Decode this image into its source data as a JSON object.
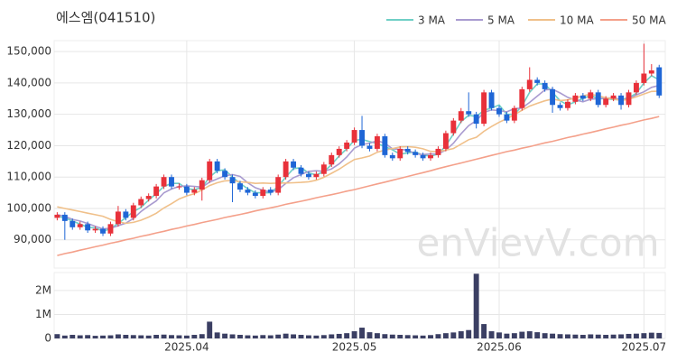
{
  "chart_data": {
    "type": "candlestick",
    "title": "에스엠(041510)",
    "watermark": "enVievV.com",
    "up_color": "#e8313a",
    "down_color": "#1f66d6",
    "volume_color": "#3b3f63",
    "grid": true,
    "xlim": [
      -0.4,
      79.8
    ],
    "xticks": [
      {
        "value": 17,
        "label": "2025.04"
      },
      {
        "value": 39,
        "label": "2025.05"
      },
      {
        "value": 58,
        "label": "2025.06"
      },
      {
        "value": 77,
        "label": "2025.07"
      }
    ],
    "ylim": [
      81000,
      153500
    ],
    "yticks": [
      {
        "value": 90000,
        "label": "90,000"
      },
      {
        "value": 100000,
        "label": "100,000"
      },
      {
        "value": 110000,
        "label": "110,000"
      },
      {
        "value": 120000,
        "label": "120,000"
      },
      {
        "value": 130000,
        "label": "130,000"
      },
      {
        "value": 140000,
        "label": "140,000"
      },
      {
        "value": 150000,
        "label": "150,000"
      }
    ],
    "volume_ylim": [
      0,
      2750000
    ],
    "volume_yticks": [
      0,
      {
        "value": 1000000,
        "label": "1M"
      },
      {
        "value": 2000000,
        "label": "2M"
      }
    ],
    "open": [
      97000,
      98000,
      96000,
      94000,
      95000,
      93000,
      93500,
      92000,
      95000,
      99000,
      97000,
      101000,
      103000,
      104000,
      107000,
      110000,
      107000,
      107000,
      105000,
      106000,
      109000,
      115000,
      112000,
      110000,
      108000,
      106000,
      105000,
      104000,
      106000,
      105000,
      110000,
      115000,
      113000,
      111000,
      110000,
      111000,
      114000,
      117000,
      119000,
      121000,
      125000,
      120000,
      119000,
      123000,
      117000,
      116000,
      119000,
      118000,
      117000,
      116000,
      117000,
      119000,
      124000,
      128000,
      131000,
      130000,
      127000,
      137000,
      132000,
      130000,
      128000,
      132000,
      138000,
      141000,
      140000,
      138000,
      133000,
      132000,
      134000,
      136000,
      135000,
      137000,
      133000,
      135000,
      136000,
      133000,
      137000,
      140000,
      143000,
      145000
    ],
    "high": [
      98800,
      98800,
      96800,
      95800,
      95800,
      94300,
      94300,
      95800,
      100800,
      99800,
      101800,
      103800,
      104800,
      107800,
      110800,
      110800,
      108000,
      107800,
      106800,
      109800,
      115800,
      115800,
      112800,
      110800,
      108800,
      106800,
      105800,
      106800,
      106800,
      110800,
      115800,
      115800,
      113800,
      111800,
      111800,
      114800,
      117800,
      119800,
      121800,
      125800,
      129500,
      120800,
      123800,
      123800,
      117800,
      119800,
      119800,
      118800,
      117800,
      117800,
      119800,
      124800,
      128800,
      132000,
      137000,
      130800,
      137800,
      137800,
      132800,
      130800,
      132800,
      138800,
      145000,
      141800,
      140800,
      138800,
      133800,
      134800,
      136800,
      136800,
      137800,
      137800,
      135800,
      136800,
      136800,
      137800,
      140800,
      152500,
      146000,
      145800
    ],
    "low": [
      96200,
      90000,
      93200,
      93200,
      92200,
      92200,
      91200,
      91200,
      94200,
      96200,
      96200,
      100200,
      102200,
      103200,
      106200,
      106200,
      106000,
      104200,
      104200,
      102500,
      108200,
      111200,
      109200,
      102000,
      105200,
      104200,
      103200,
      103200,
      104200,
      104200,
      109200,
      112200,
      110200,
      109200,
      109200,
      110200,
      113200,
      116200,
      118200,
      120200,
      119200,
      118200,
      118200,
      116200,
      115200,
      115200,
      117200,
      116200,
      115200,
      115200,
      116200,
      118200,
      123200,
      127200,
      129200,
      125500,
      126200,
      131200,
      129200,
      127200,
      127200,
      131200,
      137200,
      139200,
      137200,
      130500,
      131200,
      131200,
      133200,
      134200,
      134200,
      132200,
      132200,
      134200,
      131500,
      132200,
      136200,
      139200,
      142200,
      135200
    ],
    "close": [
      98000,
      96000,
      94000,
      95000,
      93000,
      93500,
      92000,
      95000,
      99000,
      97000,
      101000,
      103000,
      104000,
      107000,
      110000,
      107000,
      107000,
      105000,
      106000,
      109000,
      115000,
      112000,
      110000,
      108000,
      106000,
      105000,
      104000,
      106000,
      105000,
      110000,
      115000,
      113000,
      111000,
      110000,
      111000,
      114000,
      117000,
      119000,
      121000,
      125000,
      120000,
      119000,
      123000,
      117000,
      116000,
      119000,
      118000,
      117000,
      116000,
      117000,
      119000,
      124000,
      128000,
      131000,
      130000,
      127000,
      137000,
      132000,
      130000,
      128000,
      132000,
      138000,
      141000,
      140000,
      138000,
      133000,
      132000,
      134000,
      136000,
      135000,
      137000,
      133000,
      135000,
      136000,
      133000,
      137000,
      140000,
      143000,
      144000,
      136000
    ],
    "volume": [
      180000,
      120000,
      150000,
      130000,
      140000,
      110000,
      120000,
      130000,
      170000,
      150000,
      140000,
      130000,
      120000,
      150000,
      160000,
      140000,
      130000,
      120000,
      150000,
      180000,
      700000,
      250000,
      200000,
      170000,
      150000,
      130000,
      120000,
      140000,
      130000,
      160000,
      200000,
      170000,
      150000,
      130000,
      120000,
      140000,
      170000,
      190000,
      220000,
      300000,
      450000,
      260000,
      220000,
      180000,
      160000,
      150000,
      140000,
      130000,
      120000,
      140000,
      180000,
      220000,
      250000,
      300000,
      350000,
      2700000,
      600000,
      300000,
      250000,
      200000,
      220000,
      280000,
      300000,
      260000,
      220000,
      200000,
      180000,
      170000,
      160000,
      150000,
      170000,
      160000,
      150000,
      160000,
      170000,
      190000,
      200000,
      220000,
      240000,
      230000
    ],
    "series": [
      {
        "name": "3 MA",
        "color": "#6fcfc6",
        "values": [
          97500,
          97000,
          96000,
          95000,
          94000,
          93800,
          92800,
          93500,
          95300,
          97000,
          99000,
          100300,
          102700,
          104700,
          107000,
          108000,
          108000,
          106300,
          106000,
          106700,
          110000,
          112000,
          112300,
          110000,
          108000,
          106300,
          105000,
          105000,
          105000,
          107000,
          110000,
          112700,
          113000,
          111300,
          110700,
          111700,
          114000,
          116700,
          119000,
          121700,
          122000,
          121300,
          120700,
          119700,
          118700,
          117300,
          117700,
          118000,
          117000,
          116700,
          117300,
          120000,
          123700,
          127700,
          129700,
          129300,
          131300,
          132000,
          133000,
          130000,
          130000,
          132700,
          137000,
          139700,
          139700,
          137000,
          134300,
          133000,
          134000,
          135000,
          136000,
          135000,
          135000,
          134700,
          134700,
          135300,
          136700,
          140000,
          142300,
          141000
        ]
      },
      {
        "name": "5 MA",
        "color": "#a99bd0",
        "values": [
          98000,
          97500,
          96500,
          96000,
          95200,
          94300,
          93500,
          93700,
          94500,
          95300,
          96800,
          99000,
          100800,
          102400,
          105000,
          106200,
          107000,
          107200,
          107000,
          106800,
          108400,
          109400,
          110400,
          110800,
          110200,
          108200,
          106600,
          105800,
          105200,
          106000,
          108000,
          109800,
          110800,
          111800,
          112000,
          111800,
          112600,
          114200,
          116400,
          119200,
          120400,
          120800,
          121600,
          120800,
          119000,
          118800,
          118600,
          117400,
          117200,
          117400,
          117400,
          118600,
          120800,
          123800,
          126400,
          128000,
          130600,
          131400,
          131200,
          130800,
          131800,
          132000,
          133800,
          135800,
          137800,
          138000,
          136800,
          135400,
          134600,
          134000,
          134800,
          135000,
          135200,
          135200,
          134800,
          134800,
          136200,
          137200,
          138600,
          139200
        ]
      },
      {
        "name": "10 MA",
        "color": "#f0c08a",
        "values": [
          100500,
          100000,
          99500,
          99000,
          98500,
          98000,
          97500,
          96500,
          95800,
          95250,
          95550,
          96250,
          97250,
          98450,
          100150,
          101500,
          103000,
          104000,
          104700,
          105900,
          107300,
          108200,
          108800,
          108900,
          108500,
          108300,
          108000,
          108100,
          108000,
          108100,
          108100,
          108200,
          108300,
          108500,
          109000,
          109900,
          111200,
          112500,
          114100,
          115600,
          116100,
          116700,
          117900,
          118600,
          119100,
          119600,
          119700,
          119500,
          119000,
          118200,
          118100,
          118600,
          119100,
          120500,
          121900,
          122700,
          124600,
          126100,
          127500,
          128600,
          129900,
          131300,
          132600,
          133500,
          134300,
          134900,
          134400,
          134600,
          135200,
          135900,
          136400,
          135900,
          135300,
          134900,
          134400,
          134800,
          135600,
          136500,
          137300,
          137400
        ]
      },
      {
        "name": "50 MA",
        "color": "#f4a08a",
        "values": [
          85000,
          85600,
          86100,
          86700,
          87200,
          87800,
          88300,
          88900,
          89400,
          90000,
          90500,
          91100,
          91600,
          92200,
          92700,
          93300,
          93800,
          94400,
          94900,
          95500,
          96000,
          96500,
          97100,
          97600,
          98100,
          98600,
          99200,
          99700,
          100200,
          100700,
          101300,
          101800,
          102300,
          102800,
          103400,
          103900,
          104400,
          104900,
          105500,
          106000,
          106600,
          107200,
          107800,
          108400,
          109000,
          109600,
          110200,
          110800,
          111400,
          112000,
          112700,
          113300,
          113900,
          114500,
          115100,
          115700,
          116300,
          116900,
          117500,
          118100,
          118600,
          119200,
          119700,
          120300,
          120900,
          121400,
          122000,
          122600,
          123100,
          123700,
          124200,
          124800,
          125400,
          125900,
          126500,
          127000,
          127600,
          128200,
          128700,
          129300
        ]
      }
    ]
  }
}
